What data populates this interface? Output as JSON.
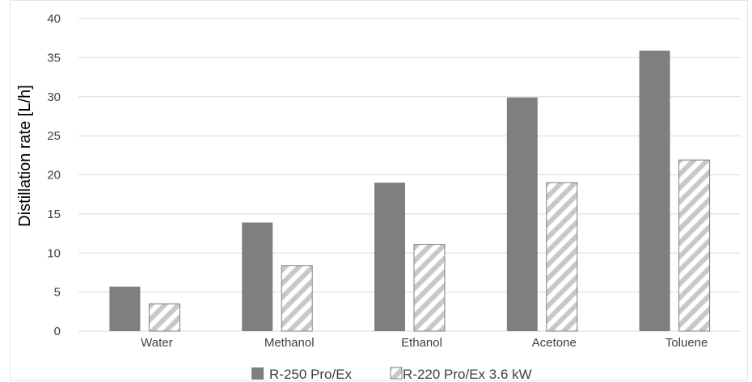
{
  "chart_data": {
    "type": "bar",
    "title": "",
    "xlabel": "",
    "ylabel": "Distillation rate [L/h]",
    "ylim": [
      0,
      40
    ],
    "yticks": [
      "0",
      "5",
      "10",
      "15",
      "20",
      "25",
      "30",
      "35",
      "40"
    ],
    "categories": [
      "Water",
      "Methanol",
      "Ethanol",
      "Acetone",
      "Toluene"
    ],
    "series": [
      {
        "name": "R-250 Pro/Ex",
        "values": [
          5.7,
          13.9,
          19.0,
          29.9,
          35.9
        ],
        "color": "#7f7f7f",
        "style": "solid"
      },
      {
        "name": "R-220 Pro/Ex 3.6 kW",
        "values": [
          3.5,
          8.4,
          11.1,
          19.0,
          21.9
        ],
        "color": "#bfbfbf",
        "style": "hatched"
      }
    ],
    "grid": true,
    "legend": "bottom"
  }
}
